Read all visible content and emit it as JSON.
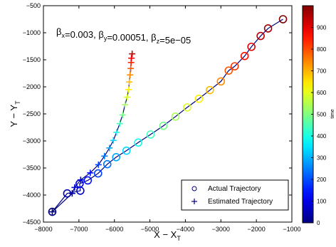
{
  "chart_data": {
    "type": "scatter",
    "title": "",
    "annotation": {
      "parts": [
        {
          "t": "β",
          "sub": "x"
        },
        {
          "t": "=0.003, "
        },
        {
          "t": "β",
          "sub": "y"
        },
        {
          "t": "=0.00051, "
        },
        {
          "t": "β",
          "sub": "z"
        },
        {
          "t": "=5e−05"
        }
      ]
    },
    "xlabel": {
      "main": "X − X",
      "sub": "T"
    },
    "ylabel": {
      "main": "Y − Y",
      "sub": "T"
    },
    "xlim": [
      -8000,
      -1000
    ],
    "ylim": [
      -4500,
      -500
    ],
    "x_ticks": [
      -8000,
      -7000,
      -6000,
      -5000,
      -4000,
      -3000,
      -2000,
      -1000
    ],
    "x_tick_labels": [
      "−8000",
      "−7000",
      "−6000",
      "−5000",
      "−4000",
      "−3000",
      "−2000",
      "−1000"
    ],
    "y_ticks": [
      -4500,
      -4000,
      -3500,
      -3000,
      -2500,
      -2000,
      -1500,
      -1000,
      -500
    ],
    "y_tick_labels": [
      "−4500",
      "−4000",
      "−3500",
      "−3000",
      "−2500",
      "−2000",
      "−1500",
      "−1000",
      "−500"
    ],
    "grid": false,
    "legend": {
      "position": "bottom-right",
      "entries": [
        {
          "label": "Actual Trajectory",
          "marker": "circle"
        },
        {
          "label": "Estimated Trajectory",
          "marker": "plus"
        }
      ]
    },
    "colorbar": {
      "label": "time",
      "colormap": "jet",
      "range": [
        0,
        1000
      ],
      "ticks": [
        0,
        100,
        200,
        300,
        400,
        500,
        600,
        700,
        800,
        900
      ],
      "tick_labels": [
        "0",
        "100",
        "200",
        "300",
        "400",
        "500",
        "600",
        "700",
        "800",
        "900"
      ]
    },
    "series": [
      {
        "name": "Actual Trajectory",
        "marker": "circle",
        "line_color": "#000080",
        "points": [
          {
            "x": -7750,
            "y": -4310,
            "t": 0
          },
          {
            "x": -7330,
            "y": -3970,
            "t": 50
          },
          {
            "x": -6960,
            "y": -3920,
            "t": 80
          },
          {
            "x": -6980,
            "y": -3790,
            "t": 100
          },
          {
            "x": -6750,
            "y": -3730,
            "t": 140
          },
          {
            "x": -6460,
            "y": -3600,
            "t": 190
          },
          {
            "x": -6200,
            "y": -3430,
            "t": 240
          },
          {
            "x": -5950,
            "y": -3300,
            "t": 290
          },
          {
            "x": -5660,
            "y": -3180,
            "t": 340
          },
          {
            "x": -5330,
            "y": -3030,
            "t": 390
          },
          {
            "x": -4980,
            "y": -2880,
            "t": 440
          },
          {
            "x": -4620,
            "y": -2720,
            "t": 490
          },
          {
            "x": -4280,
            "y": -2550,
            "t": 540
          },
          {
            "x": -3950,
            "y": -2380,
            "t": 590
          },
          {
            "x": -3620,
            "y": -2220,
            "t": 640
          },
          {
            "x": -3310,
            "y": -2060,
            "t": 690
          },
          {
            "x": -3000,
            "y": -1900,
            "t": 740
          },
          {
            "x": -2780,
            "y": -1700,
            "t": 790
          },
          {
            "x": -2610,
            "y": -1620,
            "t": 820
          },
          {
            "x": -2330,
            "y": -1430,
            "t": 860
          },
          {
            "x": -2140,
            "y": -1260,
            "t": 900
          },
          {
            "x": -1880,
            "y": -1060,
            "t": 940
          },
          {
            "x": -1670,
            "y": -920,
            "t": 970
          },
          {
            "x": -1250,
            "y": -750,
            "t": 1000
          }
        ]
      },
      {
        "name": "Estimated Trajectory",
        "marker": "plus",
        "line_color": "#000080",
        "points": [
          {
            "x": -7750,
            "y": -4310,
            "t": 0
          },
          {
            "x": -7190,
            "y": -3970,
            "t": 40
          },
          {
            "x": -7120,
            "y": -3860,
            "t": 70
          },
          {
            "x": -6950,
            "y": -3720,
            "t": 100
          },
          {
            "x": -6680,
            "y": -3590,
            "t": 140
          },
          {
            "x": -6450,
            "y": -3440,
            "t": 190
          },
          {
            "x": -6280,
            "y": -3280,
            "t": 240
          },
          {
            "x": -6140,
            "y": -3130,
            "t": 290
          },
          {
            "x": -6030,
            "y": -2990,
            "t": 340
          },
          {
            "x": -5940,
            "y": -2840,
            "t": 390
          },
          {
            "x": -5850,
            "y": -2680,
            "t": 440
          },
          {
            "x": -5770,
            "y": -2520,
            "t": 490
          },
          {
            "x": -5700,
            "y": -2330,
            "t": 540
          },
          {
            "x": -5640,
            "y": -2190,
            "t": 590
          },
          {
            "x": -5600,
            "y": -2050,
            "t": 640
          },
          {
            "x": -5580,
            "y": -1910,
            "t": 690
          },
          {
            "x": -5560,
            "y": -1780,
            "t": 740
          },
          {
            "x": -5540,
            "y": -1660,
            "t": 790
          },
          {
            "x": -5530,
            "y": -1550,
            "t": 840
          },
          {
            "x": -5520,
            "y": -1470,
            "t": 890
          },
          {
            "x": -5500,
            "y": -1390,
            "t": 940
          }
        ]
      }
    ]
  }
}
